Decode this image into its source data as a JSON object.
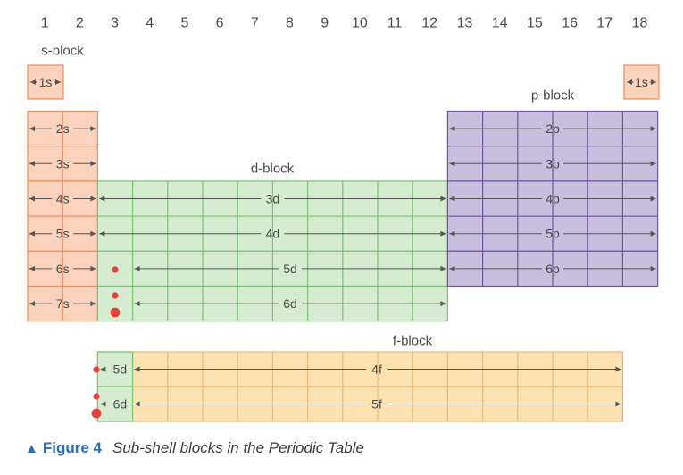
{
  "group_numbers": [
    "1",
    "2",
    "3",
    "4",
    "5",
    "6",
    "7",
    "8",
    "9",
    "10",
    "11",
    "12",
    "13",
    "14",
    "15",
    "16",
    "17",
    "18"
  ],
  "blocks": {
    "s": {
      "title": "s-block",
      "fill": "#fbd3bd",
      "stroke": "#ee8d5e",
      "rows": [
        {
          "label": "1s",
          "split": false
        },
        {
          "label": "2s",
          "split": true
        },
        {
          "label": "3s",
          "split": true
        },
        {
          "label": "4s",
          "split": true
        },
        {
          "label": "5s",
          "split": true
        },
        {
          "label": "6s",
          "split": true
        },
        {
          "label": "7s",
          "split": true
        }
      ],
      "helium_label": "1s"
    },
    "p": {
      "title": "p-block",
      "fill": "#c8bedd",
      "stroke": "#6e56a3",
      "rows": [
        "2p",
        "3p",
        "4p",
        "5p",
        "6p"
      ]
    },
    "d": {
      "title": "d-block",
      "fill": "#d5ecd0",
      "stroke": "#7cc276",
      "rows": [
        "3d",
        "4d",
        "5d",
        "6d"
      ]
    },
    "f": {
      "title": "f-block",
      "fill": "#fde3b1",
      "stroke": "#e8b876",
      "cell_fill": "#d5ecd0",
      "cell_stroke": "#7cc276",
      "rows": [
        {
          "cell_label": "5d",
          "label": "4f"
        },
        {
          "cell_label": "6d",
          "label": "5f"
        }
      ]
    }
  },
  "marker_color": "#e8413a",
  "caption": {
    "icon": "▲",
    "figure": "Figure 4",
    "text": "Sub-shell blocks in the Periodic Table"
  }
}
